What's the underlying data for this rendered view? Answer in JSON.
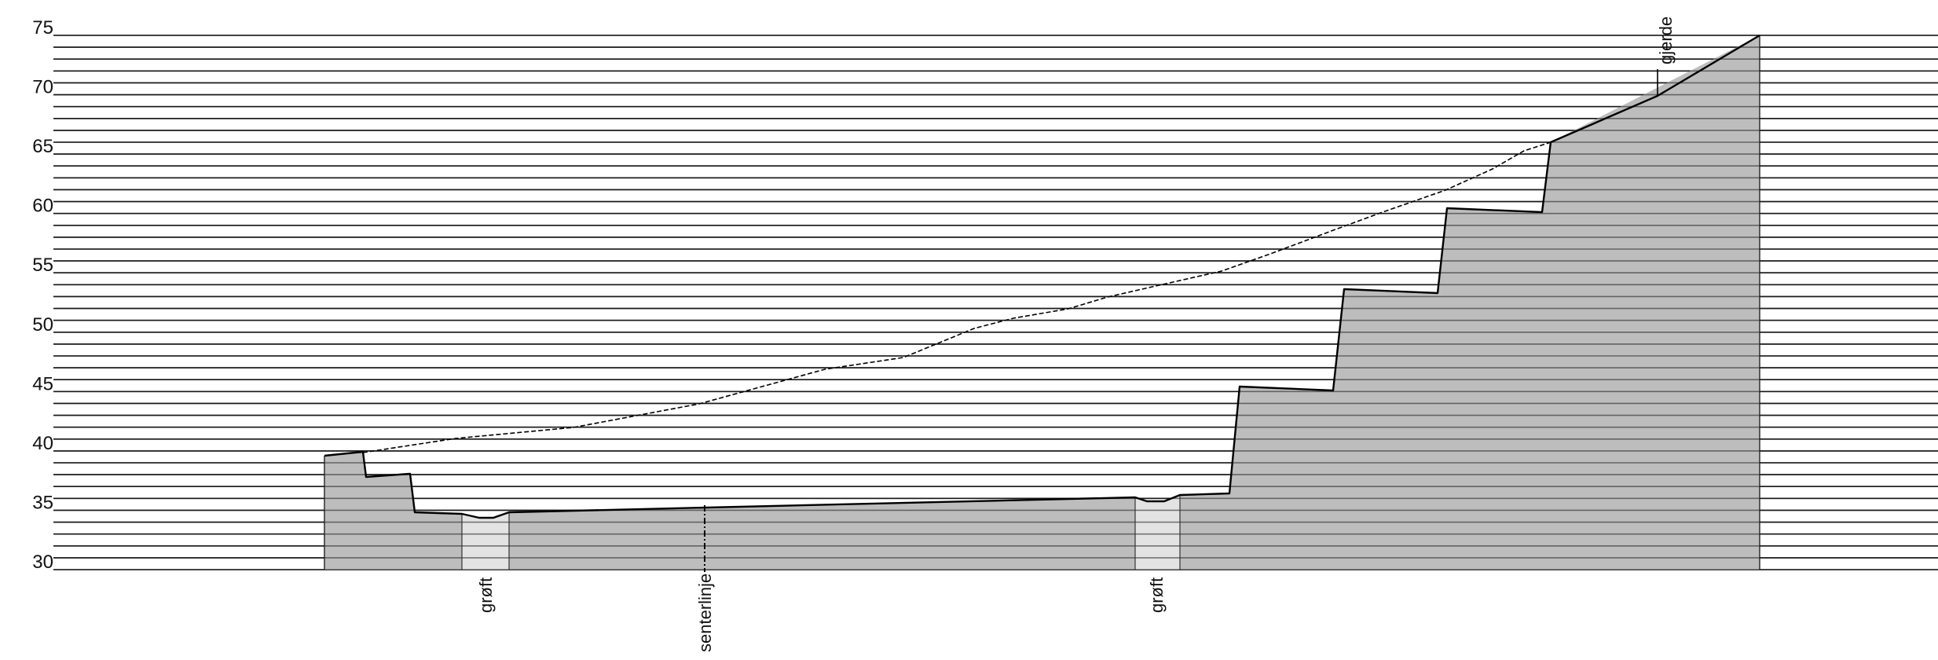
{
  "diagram": {
    "type": "cross-section-elevation-profile",
    "y_axis": {
      "min": 30,
      "max": 75,
      "minor_step": 1,
      "labels": [
        "30",
        "35",
        "40",
        "45",
        "50",
        "55",
        "60",
        "65",
        "70",
        "75"
      ]
    },
    "annotations": {
      "ditch_left": "grøft",
      "centerline": "senterlinje",
      "ditch_right": "grøft",
      "fence": "gjerde"
    },
    "colors": {
      "terrain_fill": "#bdbdbd",
      "ditch_fill": "#e3e3e3",
      "gridline": "#1a1a1a",
      "outline": "#000000"
    }
  }
}
